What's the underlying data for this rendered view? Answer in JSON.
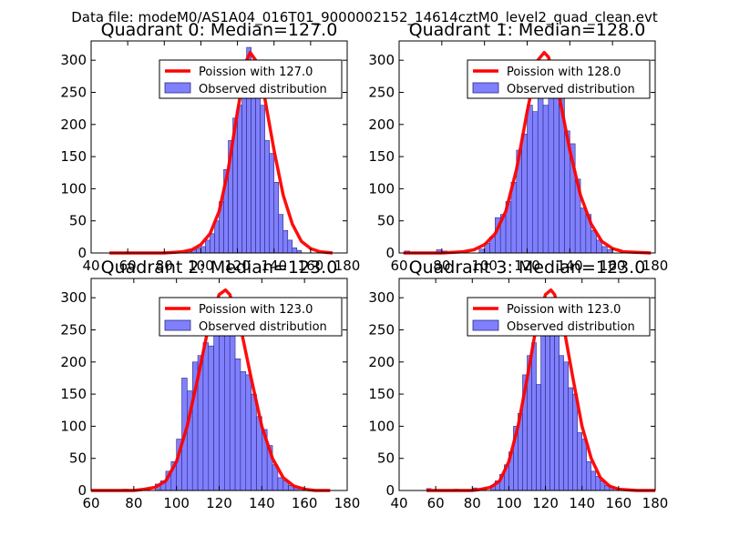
{
  "figure_title": "Data file: modeM0/AS1A04_016T01_9000002152_14614cztM0_level2_quad_clean.evt",
  "colors": {
    "bar_fill": "#8080ff",
    "bar_edge": "#2a2a80",
    "poisson_line": "#ff0000",
    "axes": "#000000",
    "background": "#ffffff"
  },
  "chart_data": [
    {
      "type": "bar",
      "title": "Quadrant 0: Median=127.0",
      "xlim": [
        40,
        180
      ],
      "ylim": [
        0,
        330
      ],
      "xticks": [
        40,
        60,
        80,
        100,
        120,
        140,
        160,
        180
      ],
      "yticks": [
        0,
        50,
        100,
        150,
        200,
        250,
        300
      ],
      "legend": {
        "position": "top-right",
        "line_label": "Poission with 127.0",
        "bar_label": "Observed distribution"
      },
      "histogram": {
        "bin_width": 2.5,
        "bins": [
          [
            92.5,
            2
          ],
          [
            95,
            5
          ],
          [
            97.5,
            8
          ],
          [
            100,
            10
          ],
          [
            102.5,
            20
          ],
          [
            105,
            30
          ],
          [
            107.5,
            50
          ],
          [
            110,
            80
          ],
          [
            112.5,
            130
          ],
          [
            115,
            175
          ],
          [
            117.5,
            210
          ],
          [
            120,
            230
          ],
          [
            122.5,
            280
          ],
          [
            125,
            320
          ],
          [
            127.5,
            300
          ],
          [
            130,
            270
          ],
          [
            132.5,
            230
          ],
          [
            135,
            175
          ],
          [
            137.5,
            155
          ],
          [
            140,
            110
          ],
          [
            142.5,
            60
          ],
          [
            145,
            35
          ],
          [
            147.5,
            20
          ],
          [
            150,
            8
          ],
          [
            152.5,
            4
          ]
        ]
      },
      "poisson": {
        "label": "Poission with 127.0",
        "mean": 127.0,
        "points": [
          [
            50,
            0
          ],
          [
            60,
            0
          ],
          [
            70,
            0
          ],
          [
            80,
            0
          ],
          [
            90,
            2
          ],
          [
            95,
            5
          ],
          [
            100,
            13
          ],
          [
            105,
            30
          ],
          [
            110,
            65
          ],
          [
            115,
            130
          ],
          [
            120,
            220
          ],
          [
            125,
            300
          ],
          [
            127,
            312
          ],
          [
            130,
            300
          ],
          [
            135,
            240
          ],
          [
            140,
            160
          ],
          [
            145,
            90
          ],
          [
            150,
            45
          ],
          [
            155,
            18
          ],
          [
            160,
            7
          ],
          [
            165,
            2
          ],
          [
            172,
            0
          ]
        ]
      }
    },
    {
      "type": "bar",
      "title": "Quadrant 1: Median=128.0",
      "xlim": [
        60,
        180
      ],
      "ylim": [
        0,
        330
      ],
      "xticks": [
        60,
        80,
        100,
        120,
        140,
        160,
        180
      ],
      "yticks": [
        0,
        50,
        100,
        150,
        200,
        250,
        300
      ],
      "legend": {
        "position": "top-right",
        "line_label": "Poission with 128.0",
        "bar_label": "Observed distribution"
      },
      "histogram": {
        "bin_width": 2.5,
        "bins": [
          [
            62.5,
            3
          ],
          [
            77.5,
            5
          ],
          [
            80,
            3
          ],
          [
            97.5,
            6
          ],
          [
            100,
            15
          ],
          [
            102.5,
            25
          ],
          [
            105,
            55
          ],
          [
            107.5,
            60
          ],
          [
            110,
            80
          ],
          [
            112.5,
            110
          ],
          [
            115,
            160
          ],
          [
            117.5,
            185
          ],
          [
            120,
            230
          ],
          [
            122.5,
            220
          ],
          [
            125,
            260
          ],
          [
            127.5,
            230
          ],
          [
            130,
            300
          ],
          [
            132.5,
            270
          ],
          [
            135,
            250
          ],
          [
            137.5,
            190
          ],
          [
            140,
            170
          ],
          [
            142.5,
            115
          ],
          [
            145,
            70
          ],
          [
            147.5,
            60
          ],
          [
            150,
            35
          ],
          [
            152.5,
            20
          ],
          [
            155,
            10
          ],
          [
            157.5,
            5
          ]
        ]
      },
      "poisson": {
        "label": "Poission with 128.0",
        "mean": 128.0,
        "points": [
          [
            62,
            0
          ],
          [
            80,
            0
          ],
          [
            90,
            2
          ],
          [
            95,
            5
          ],
          [
            100,
            13
          ],
          [
            105,
            30
          ],
          [
            110,
            65
          ],
          [
            115,
            130
          ],
          [
            120,
            220
          ],
          [
            125,
            300
          ],
          [
            128,
            312
          ],
          [
            130,
            305
          ],
          [
            135,
            245
          ],
          [
            140,
            160
          ],
          [
            145,
            90
          ],
          [
            150,
            45
          ],
          [
            155,
            18
          ],
          [
            160,
            7
          ],
          [
            165,
            2
          ],
          [
            178,
            0
          ]
        ]
      }
    },
    {
      "type": "bar",
      "title": "Quadrant 2: Median=123.0",
      "xlim": [
        60,
        180
      ],
      "ylim": [
        0,
        330
      ],
      "xticks": [
        60,
        80,
        100,
        120,
        140,
        160,
        180
      ],
      "yticks": [
        0,
        50,
        100,
        150,
        200,
        250,
        300
      ],
      "legend": {
        "position": "top-right",
        "line_label": "Poission with 123.0",
        "bar_label": "Observed distribution"
      },
      "histogram": {
        "bin_width": 2.5,
        "bins": [
          [
            75,
            2
          ],
          [
            85,
            3
          ],
          [
            90,
            10
          ],
          [
            92.5,
            15
          ],
          [
            95,
            30
          ],
          [
            97.5,
            45
          ],
          [
            100,
            80
          ],
          [
            102.5,
            175
          ],
          [
            105,
            155
          ],
          [
            107.5,
            200
          ],
          [
            110,
            210
          ],
          [
            112.5,
            230
          ],
          [
            115,
            225
          ],
          [
            117.5,
            255
          ],
          [
            120,
            300
          ],
          [
            122.5,
            295
          ],
          [
            125,
            250
          ],
          [
            127.5,
            205
          ],
          [
            130,
            185
          ],
          [
            132.5,
            180
          ],
          [
            135,
            150
          ],
          [
            137.5,
            115
          ],
          [
            140,
            95
          ],
          [
            142.5,
            70
          ],
          [
            145,
            40
          ],
          [
            147.5,
            20
          ],
          [
            150,
            15
          ],
          [
            152.5,
            8
          ],
          [
            155,
            4
          ]
        ]
      },
      "poisson": {
        "label": "Poission with 123.0",
        "mean": 123.0,
        "points": [
          [
            60,
            0
          ],
          [
            70,
            0
          ],
          [
            80,
            0
          ],
          [
            85,
            2
          ],
          [
            90,
            5
          ],
          [
            95,
            15
          ],
          [
            100,
            45
          ],
          [
            105,
            100
          ],
          [
            110,
            175
          ],
          [
            115,
            255
          ],
          [
            120,
            305
          ],
          [
            123,
            312
          ],
          [
            125,
            305
          ],
          [
            130,
            255
          ],
          [
            135,
            175
          ],
          [
            140,
            100
          ],
          [
            145,
            50
          ],
          [
            150,
            20
          ],
          [
            155,
            7
          ],
          [
            160,
            2
          ],
          [
            165,
            0
          ],
          [
            172,
            0
          ]
        ]
      }
    },
    {
      "type": "bar",
      "title": "Quadrant 3: Median=123.0",
      "xlim": [
        40,
        180
      ],
      "ylim": [
        0,
        330
      ],
      "xticks": [
        40,
        60,
        80,
        100,
        120,
        140,
        160,
        180
      ],
      "yticks": [
        0,
        50,
        100,
        150,
        200,
        250,
        300
      ],
      "legend": {
        "position": "top-right",
        "line_label": "Poission with 123.0",
        "bar_label": "Observed distribution"
      },
      "histogram": {
        "bin_width": 2.5,
        "bins": [
          [
            55,
            3
          ],
          [
            70,
            2
          ],
          [
            80,
            4
          ],
          [
            85,
            3
          ],
          [
            90,
            8
          ],
          [
            92.5,
            15
          ],
          [
            95,
            25
          ],
          [
            97.5,
            40
          ],
          [
            100,
            60
          ],
          [
            102.5,
            100
          ],
          [
            105,
            120
          ],
          [
            107.5,
            180
          ],
          [
            110,
            210
          ],
          [
            112.5,
            230
          ],
          [
            115,
            165
          ],
          [
            117.5,
            265
          ],
          [
            120,
            300
          ],
          [
            122.5,
            290
          ],
          [
            125,
            265
          ],
          [
            127.5,
            210
          ],
          [
            130,
            200
          ],
          [
            132.5,
            160
          ],
          [
            135,
            150
          ],
          [
            137.5,
            90
          ],
          [
            140,
            80
          ],
          [
            142.5,
            45
          ],
          [
            145,
            30
          ],
          [
            147.5,
            22
          ],
          [
            150,
            15
          ],
          [
            152.5,
            8
          ],
          [
            155,
            5
          ]
        ]
      },
      "poisson": {
        "label": "Poission with 123.0",
        "mean": 123.0,
        "points": [
          [
            55,
            0
          ],
          [
            70,
            0
          ],
          [
            80,
            0
          ],
          [
            85,
            2
          ],
          [
            90,
            5
          ],
          [
            95,
            15
          ],
          [
            100,
            45
          ],
          [
            105,
            100
          ],
          [
            110,
            175
          ],
          [
            115,
            255
          ],
          [
            120,
            305
          ],
          [
            123,
            312
          ],
          [
            125,
            305
          ],
          [
            130,
            255
          ],
          [
            135,
            175
          ],
          [
            140,
            100
          ],
          [
            145,
            50
          ],
          [
            150,
            20
          ],
          [
            155,
            7
          ],
          [
            160,
            2
          ],
          [
            170,
            0
          ],
          [
            180,
            0
          ]
        ]
      }
    }
  ]
}
